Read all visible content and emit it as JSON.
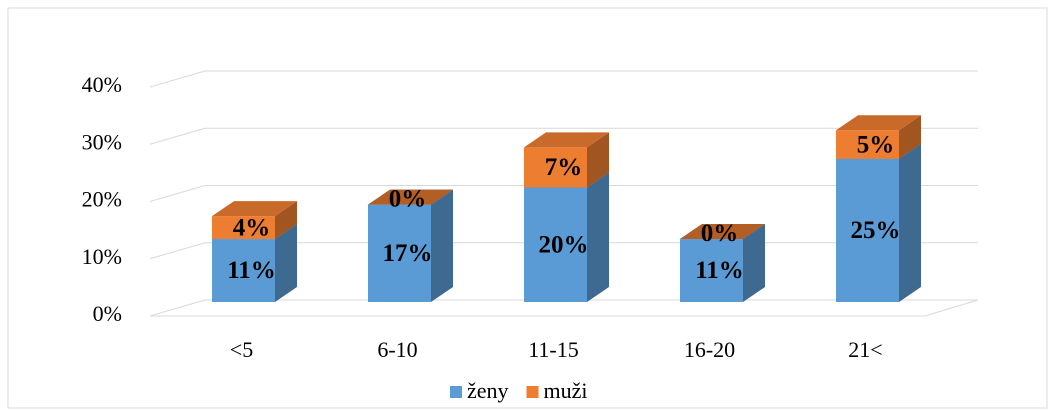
{
  "chart_data": {
    "type": "bar3d_stacked",
    "categories": [
      "<5",
      "6-10",
      "11-15",
      "16-20",
      "21<"
    ],
    "series": [
      {
        "name": "ženy",
        "color": "#5b9bd5",
        "values": [
          11,
          17,
          20,
          11,
          25
        ],
        "value_labels": [
          "11%",
          "17%",
          "20%",
          "11%",
          "25%"
        ]
      },
      {
        "name": "muži",
        "color": "#ed7d31",
        "values": [
          4,
          0,
          7,
          0,
          5
        ],
        "value_labels": [
          "4%",
          "0%",
          "7%",
          "0%",
          "5%"
        ]
      }
    ],
    "ylim": [
      0,
      40
    ],
    "yticks": [
      {
        "value": 0,
        "label": "0%"
      },
      {
        "value": 10,
        "label": "10%"
      },
      {
        "value": 20,
        "label": "20%"
      },
      {
        "value": 30,
        "label": "30%"
      },
      {
        "value": 40,
        "label": "40%"
      }
    ],
    "grid": true,
    "legend": "bottom"
  }
}
